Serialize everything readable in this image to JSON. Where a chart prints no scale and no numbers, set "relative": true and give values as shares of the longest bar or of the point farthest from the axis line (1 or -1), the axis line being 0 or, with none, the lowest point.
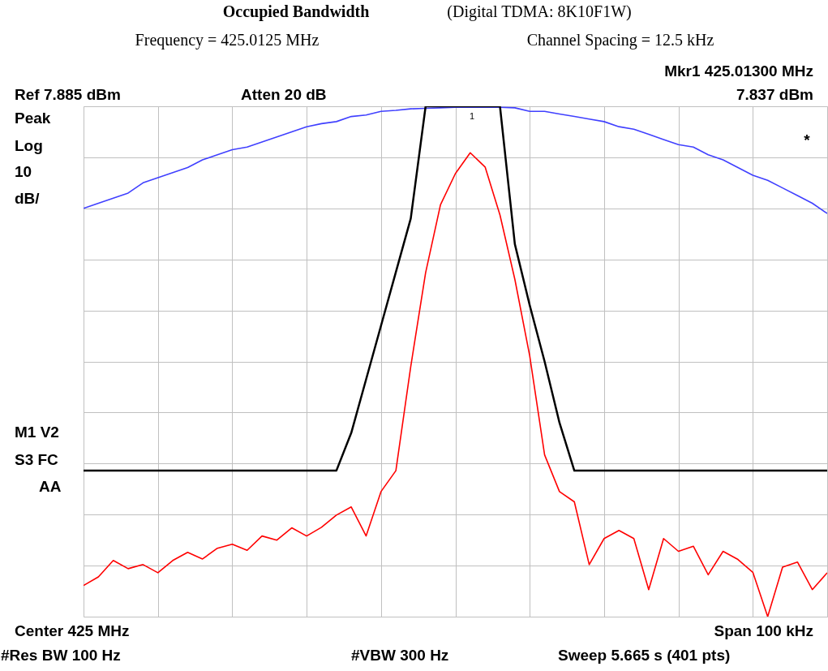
{
  "chart_data": {
    "type": "line",
    "title": "Occupied Bandwidth",
    "subtitle": "(Digital TDMA: 8K10F1W)",
    "annotations": [
      "Frequency = 425.0125 MHz",
      "Channel Spacing = 12.5 kHz",
      "Mkr1 425.01300 MHz",
      "Ref 7.885 dBm",
      "Atten 20 dB",
      "7.837 dBm",
      "Peak",
      "Log",
      "10",
      "dB/",
      "*",
      "M1 V2",
      "S3 FC",
      "AA",
      "Center 425 MHz",
      "Span 100 kHz",
      "#Res BW 100 Hz",
      "#VBW 300 Hz",
      "Sweep 5.665 s (401 pts)",
      "1"
    ],
    "relative": true,
    "categories": [
      null,
      null,
      null,
      null,
      null,
      null,
      null,
      null,
      null,
      null,
      null,
      null,
      null,
      null,
      null,
      null,
      null,
      null,
      null,
      null,
      null,
      null,
      null,
      null,
      null,
      null,
      null,
      null,
      null,
      null,
      null,
      null,
      null,
      null,
      null,
      null,
      null,
      null,
      null,
      null,
      null,
      null,
      null,
      null,
      null,
      null,
      null,
      null,
      null,
      null,
      null
    ],
    "grid": true,
    "series": [
      {
        "color": "#4040ff",
        "values": [
          0.8,
          0.81,
          0.82,
          0.83,
          0.85,
          0.86,
          0.87,
          0.88,
          0.895,
          0.905,
          0.915,
          0.92,
          0.93,
          0.94,
          0.95,
          0.96,
          0.966,
          0.97,
          0.98,
          0.983,
          0.99,
          0.992,
          0.995,
          0.996,
          0.997,
          0.998,
          0.998,
          0.998,
          0.998,
          0.997,
          0.99,
          0.99,
          0.985,
          0.98,
          0.975,
          0.97,
          0.96,
          0.955,
          0.945,
          0.935,
          0.925,
          0.92,
          0.905,
          0.895,
          0.88,
          0.865,
          0.855,
          0.84,
          0.825,
          0.81,
          0.79
        ]
      },
      {
        "color": "#000000",
        "values": [
          0.286,
          0.286,
          0.286,
          0.286,
          0.286,
          0.286,
          0.286,
          0.286,
          0.286,
          0.286,
          0.286,
          0.286,
          0.286,
          0.286,
          0.286,
          0.286,
          0.286,
          0.286,
          0.36,
          0.465,
          0.57,
          0.675,
          0.78,
          1.0,
          1.0,
          1.0,
          1.0,
          1.0,
          1.0,
          0.73,
          0.61,
          0.5,
          0.38,
          0.286,
          0.286,
          0.286,
          0.286,
          0.286,
          0.286,
          0.286,
          0.286,
          0.286,
          0.286,
          0.286,
          0.286,
          0.286,
          0.286,
          0.286,
          0.286,
          0.286,
          0.286
        ]
      },
      {
        "color": "#ff0000",
        "values": [
          0.061,
          0.078,
          0.11,
          0.094,
          0.102,
          0.086,
          0.11,
          0.126,
          0.113,
          0.134,
          0.142,
          0.13,
          0.158,
          0.15,
          0.174,
          0.158,
          0.175,
          0.199,
          0.215,
          0.158,
          0.245,
          0.286,
          0.49,
          0.674,
          0.807,
          0.868,
          0.909,
          0.881,
          0.787,
          0.661,
          0.511,
          0.317,
          0.245,
          0.225,
          0.102,
          0.153,
          0.169,
          0.153,
          0.053,
          0.153,
          0.128,
          0.138,
          0.082,
          0.128,
          0.112,
          0.087,
          0.0,
          0.097,
          0.107,
          0.053,
          0.086
        ]
      }
    ]
  }
}
